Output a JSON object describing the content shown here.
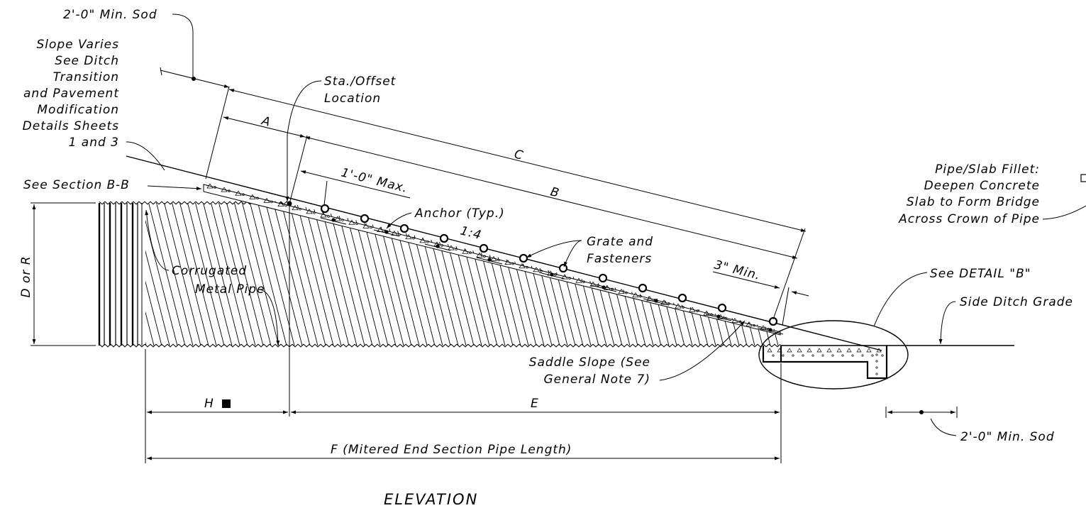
{
  "drawing": {
    "title": "ELEVATION",
    "labels": {
      "min_sod_top": "2'-0\" Min. Sod",
      "slope_varies": [
        "Slope Varies",
        "See Ditch",
        "Transition",
        "and Pavement",
        "Modification",
        "Details Sheets",
        "1 and 3"
      ],
      "sta_offset": [
        "Sta./Offset",
        "Location"
      ],
      "see_section": "See Section B-B",
      "dim_a": "A",
      "dim_b": "B",
      "dim_c": "C",
      "one_foot_max": "1'-0\" Max.",
      "anchor": "Anchor (Typ.)",
      "slope_ratio": "1:4",
      "grate": [
        "Grate and",
        "Fasteners"
      ],
      "three_inch_min": "3\" Min.",
      "d_or_r": "D or R",
      "corrugated": [
        "Corrugated",
        "Metal Pipe"
      ],
      "pipe_slab_fillet": [
        "Pipe/Slab Fillet:",
        "Deepen Concrete",
        "Slab to Form Bridge",
        "Across Crown of Pipe"
      ],
      "see_detail": "See DETAIL \"B\"",
      "side_ditch": "Side Ditch Grade",
      "saddle": [
        "Saddle Slope (See",
        "General Note 7)"
      ],
      "dim_h": "H",
      "dim_e": "E",
      "dim_f": "F (Mitered End Section Pipe Length)",
      "min_sod_bottom": "2'-0\" Min. Sod"
    }
  }
}
